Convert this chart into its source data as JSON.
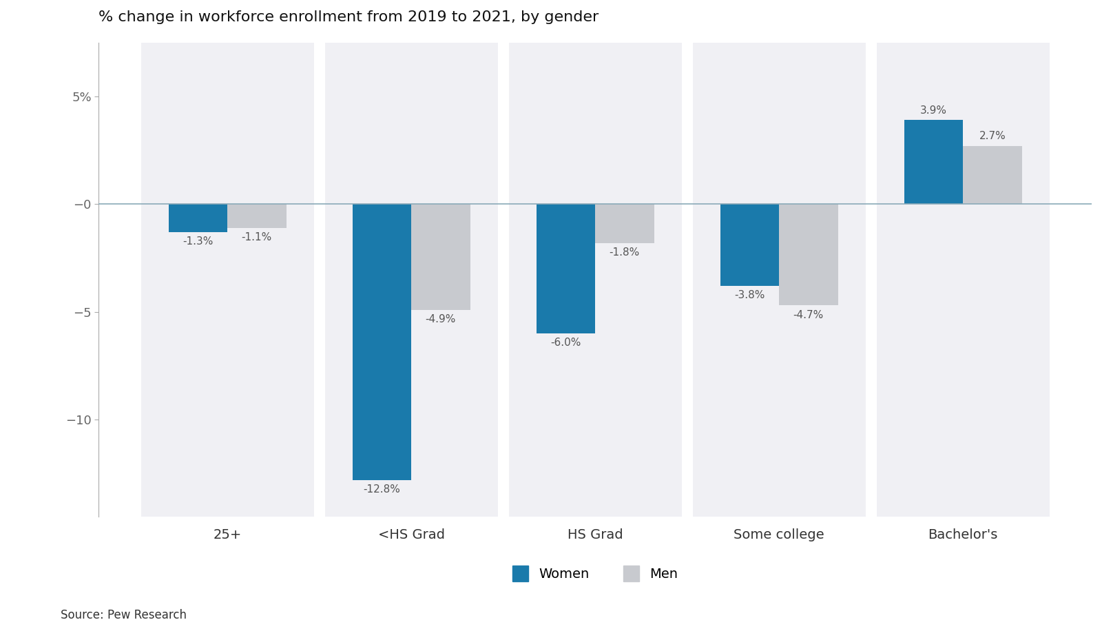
{
  "title": "% change in workforce enrollment from 2019 to 2021, by gender",
  "categories": [
    "25+",
    "<HS Grad",
    "HS Grad",
    "Some college",
    "Bachelor's"
  ],
  "women_values": [
    -1.3,
    -12.8,
    -6.0,
    -3.8,
    3.9
  ],
  "men_values": [
    -1.1,
    -4.9,
    -1.8,
    -4.7,
    2.7
  ],
  "women_labels": [
    "-1.3%",
    "-12.8%",
    "-6.0%",
    "-3.8%",
    "3.9%"
  ],
  "men_labels": [
    "-1.1%",
    "-4.9%",
    "-1.8%",
    "-4.7%",
    "2.7%"
  ],
  "women_color": "#1a7aab",
  "men_color": "#c8cacf",
  "panel_color": "#f0f0f4",
  "plot_bg": "#ffffff",
  "zero_line_color": "#8aaab8",
  "ylim": [
    -14.5,
    7.5
  ],
  "yticks": [
    5,
    0,
    -5,
    -10
  ],
  "ytick_labels": [
    "5%",
    "−0",
    "−5",
    "−10"
  ],
  "source_text": "Source: Pew Research",
  "label_fontsize": 11,
  "label_color": "#555555",
  "tick_color": "#666666",
  "title_fontsize": 16,
  "category_fontsize": 14,
  "legend_fontsize": 14
}
